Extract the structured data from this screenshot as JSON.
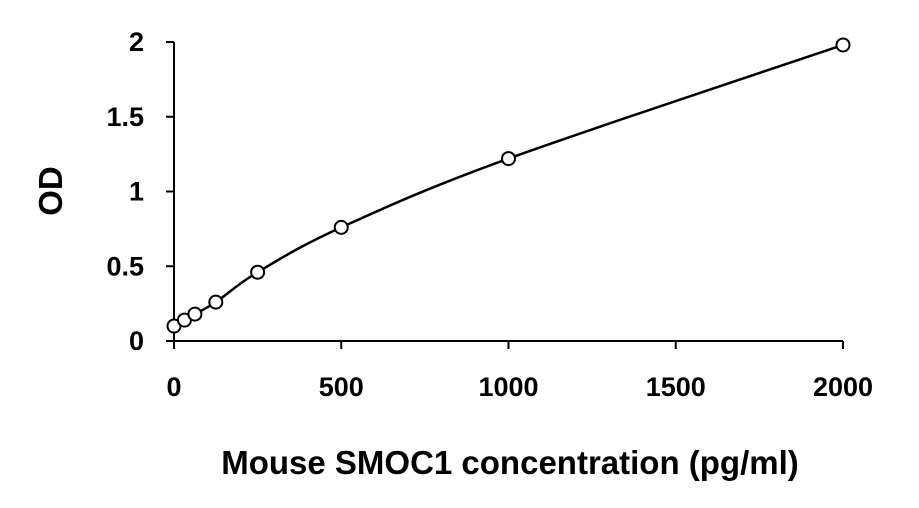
{
  "chart_data": {
    "type": "scatter",
    "title": "",
    "xlabel": "Mouse SMOC1 concentration (pg/ml)",
    "ylabel": "OD",
    "xlim": [
      0,
      2000
    ],
    "ylim": [
      0,
      2
    ],
    "x_ticks": [
      "0",
      "500",
      "1000",
      "1500",
      "2000"
    ],
    "y_ticks": [
      "0",
      "0.5",
      "1",
      "1.5",
      "2"
    ],
    "grid": false,
    "legend": "none",
    "series": [
      {
        "x": [
          0,
          31.25,
          62.5,
          125,
          250,
          500,
          1000,
          2000
        ],
        "y": [
          0.1,
          0.14,
          0.18,
          0.26,
          0.46,
          0.76,
          1.22,
          1.98
        ],
        "marker": "open-circle",
        "trendline": "smooth"
      }
    ],
    "colors": {
      "line": "#000000",
      "marker_fill": "#ffffff",
      "marker_stroke": "#000000"
    }
  }
}
